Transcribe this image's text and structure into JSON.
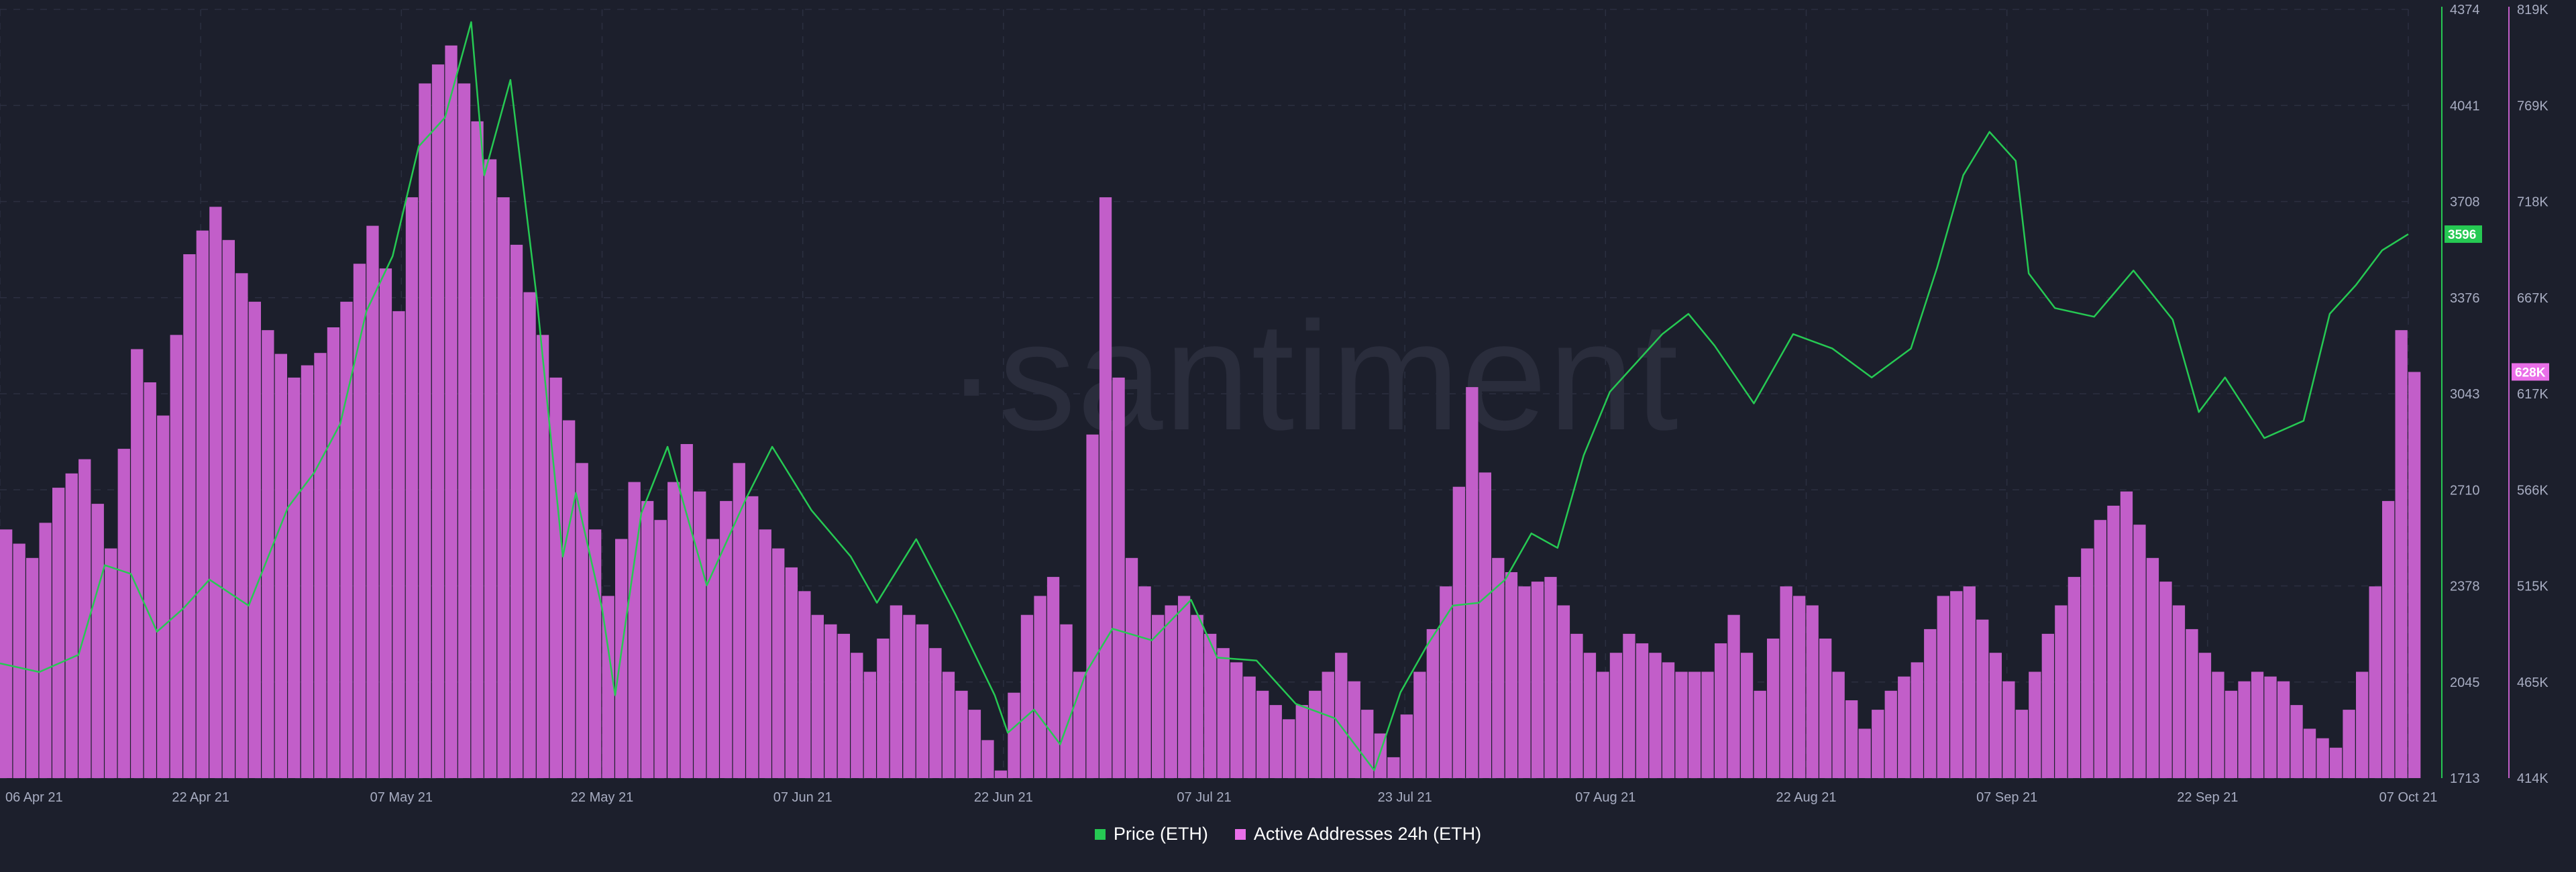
{
  "chart_data": {
    "type": "line",
    "watermark": "·santiment",
    "x_ticks": [
      "06 Apr 21",
      "22 Apr 21",
      "07 May 21",
      "22 May 21",
      "07 Jun 21",
      "22 Jun 21",
      "07 Jul 21",
      "23 Jul 21",
      "07 Aug 21",
      "22 Aug 21",
      "07 Sep 21",
      "22 Sep 21",
      "07 Oct 21"
    ],
    "x_start": "2021-04-06",
    "x_end": "2021-10-07",
    "series": [
      {
        "name": "Price (ETH)",
        "axis": "left",
        "color": "#26c953",
        "ylim": [
          1713,
          4374
        ],
        "y_ticks": [
          "4374",
          "4041",
          "3708",
          "3376",
          "3043",
          "2710",
          "2378",
          "2045",
          "1713"
        ],
        "current_value_label": "3596",
        "points": [
          [
            "2021-04-06",
            2110
          ],
          [
            "2021-04-09",
            2080
          ],
          [
            "2021-04-12",
            2140
          ],
          [
            "2021-04-14",
            2450
          ],
          [
            "2021-04-16",
            2420
          ],
          [
            "2021-04-18",
            2220
          ],
          [
            "2021-04-20",
            2300
          ],
          [
            "2021-04-22",
            2400
          ],
          [
            "2021-04-25",
            2310
          ],
          [
            "2021-04-28",
            2650
          ],
          [
            "2021-04-30",
            2770
          ],
          [
            "2021-05-02",
            2940
          ],
          [
            "2021-05-04",
            3330
          ],
          [
            "2021-05-06",
            3520
          ],
          [
            "2021-05-08",
            3900
          ],
          [
            "2021-05-10",
            4000
          ],
          [
            "2021-05-12",
            4330
          ],
          [
            "2021-05-13",
            3800
          ],
          [
            "2021-05-15",
            4130
          ],
          [
            "2021-05-17",
            3380
          ],
          [
            "2021-05-19",
            2480
          ],
          [
            "2021-05-20",
            2700
          ],
          [
            "2021-05-22",
            2300
          ],
          [
            "2021-05-23",
            2000
          ],
          [
            "2021-05-25",
            2630
          ],
          [
            "2021-05-27",
            2860
          ],
          [
            "2021-05-30",
            2380
          ],
          [
            "2021-06-02",
            2680
          ],
          [
            "2021-06-04",
            2860
          ],
          [
            "2021-06-07",
            2640
          ],
          [
            "2021-06-10",
            2480
          ],
          [
            "2021-06-12",
            2320
          ],
          [
            "2021-06-15",
            2540
          ],
          [
            "2021-06-18",
            2280
          ],
          [
            "2021-06-21",
            2000
          ],
          [
            "2021-06-22",
            1870
          ],
          [
            "2021-06-24",
            1950
          ],
          [
            "2021-06-26",
            1830
          ],
          [
            "2021-06-28",
            2080
          ],
          [
            "2021-06-30",
            2230
          ],
          [
            "2021-07-03",
            2190
          ],
          [
            "2021-07-06",
            2330
          ],
          [
            "2021-07-08",
            2130
          ],
          [
            "2021-07-11",
            2120
          ],
          [
            "2021-07-14",
            1970
          ],
          [
            "2021-07-17",
            1920
          ],
          [
            "2021-07-20",
            1740
          ],
          [
            "2021-07-22",
            2010
          ],
          [
            "2021-07-24",
            2170
          ],
          [
            "2021-07-26",
            2310
          ],
          [
            "2021-07-28",
            2320
          ],
          [
            "2021-07-30",
            2400
          ],
          [
            "2021-08-01",
            2560
          ],
          [
            "2021-08-03",
            2510
          ],
          [
            "2021-08-05",
            2830
          ],
          [
            "2021-08-07",
            3050
          ],
          [
            "2021-08-09",
            3150
          ],
          [
            "2021-08-11",
            3250
          ],
          [
            "2021-08-13",
            3320
          ],
          [
            "2021-08-15",
            3210
          ],
          [
            "2021-08-18",
            3010
          ],
          [
            "2021-08-21",
            3250
          ],
          [
            "2021-08-24",
            3200
          ],
          [
            "2021-08-27",
            3100
          ],
          [
            "2021-08-30",
            3200
          ],
          [
            "2021-09-01",
            3480
          ],
          [
            "2021-09-03",
            3800
          ],
          [
            "2021-09-05",
            3950
          ],
          [
            "2021-09-07",
            3850
          ],
          [
            "2021-09-08",
            3460
          ],
          [
            "2021-09-10",
            3340
          ],
          [
            "2021-09-13",
            3310
          ],
          [
            "2021-09-16",
            3470
          ],
          [
            "2021-09-19",
            3300
          ],
          [
            "2021-09-21",
            2980
          ],
          [
            "2021-09-23",
            3100
          ],
          [
            "2021-09-26",
            2890
          ],
          [
            "2021-09-29",
            2950
          ],
          [
            "2021-10-01",
            3320
          ],
          [
            "2021-10-03",
            3420
          ],
          [
            "2021-10-05",
            3540
          ],
          [
            "2021-10-07",
            3596
          ]
        ]
      },
      {
        "name": "Active Addresses 24h (ETH)",
        "axis": "right",
        "color": "#c25ec9",
        "ylim": [
          414000,
          819000
        ],
        "y_ticks": [
          "819K",
          "769K",
          "718K",
          "667K",
          "617K",
          "566K",
          "515K",
          "465K",
          "414K"
        ],
        "current_value_label": "628K",
        "points": [
          [
            "2021-04-06",
            545000
          ],
          [
            "2021-04-08",
            530000
          ],
          [
            "2021-04-10",
            567000
          ],
          [
            "2021-04-12",
            582000
          ],
          [
            "2021-04-14",
            535000
          ],
          [
            "2021-04-16",
            640000
          ],
          [
            "2021-04-18",
            605000
          ],
          [
            "2021-04-20",
            690000
          ],
          [
            "2021-04-22",
            715000
          ],
          [
            "2021-04-24",
            680000
          ],
          [
            "2021-04-26",
            650000
          ],
          [
            "2021-04-28",
            625000
          ],
          [
            "2021-04-30",
            638000
          ],
          [
            "2021-05-02",
            665000
          ],
          [
            "2021-05-04",
            705000
          ],
          [
            "2021-05-06",
            660000
          ],
          [
            "2021-05-08",
            780000
          ],
          [
            "2021-05-10",
            800000
          ],
          [
            "2021-05-12",
            760000
          ],
          [
            "2021-05-14",
            720000
          ],
          [
            "2021-05-16",
            670000
          ],
          [
            "2021-05-18",
            625000
          ],
          [
            "2021-05-20",
            580000
          ],
          [
            "2021-05-22",
            510000
          ],
          [
            "2021-05-24",
            570000
          ],
          [
            "2021-05-26",
            550000
          ],
          [
            "2021-05-28",
            590000
          ],
          [
            "2021-05-30",
            540000
          ],
          [
            "2021-06-01",
            580000
          ],
          [
            "2021-06-03",
            545000
          ],
          [
            "2021-06-05",
            525000
          ],
          [
            "2021-06-07",
            500000
          ],
          [
            "2021-06-09",
            490000
          ],
          [
            "2021-06-11",
            470000
          ],
          [
            "2021-06-13",
            505000
          ],
          [
            "2021-06-15",
            495000
          ],
          [
            "2021-06-17",
            470000
          ],
          [
            "2021-06-19",
            450000
          ],
          [
            "2021-06-21",
            418000
          ],
          [
            "2021-06-23",
            500000
          ],
          [
            "2021-06-25",
            520000
          ],
          [
            "2021-06-27",
            470000
          ],
          [
            "2021-06-29",
            720000
          ],
          [
            "2021-07-01",
            530000
          ],
          [
            "2021-07-03",
            500000
          ],
          [
            "2021-07-05",
            510000
          ],
          [
            "2021-07-07",
            490000
          ],
          [
            "2021-07-09",
            475000
          ],
          [
            "2021-07-11",
            460000
          ],
          [
            "2021-07-13",
            445000
          ],
          [
            "2021-07-15",
            460000
          ],
          [
            "2021-07-17",
            480000
          ],
          [
            "2021-07-19",
            450000
          ],
          [
            "2021-07-21",
            425000
          ],
          [
            "2021-07-23",
            470000
          ],
          [
            "2021-07-25",
            515000
          ],
          [
            "2021-07-27",
            620000
          ],
          [
            "2021-07-29",
            530000
          ],
          [
            "2021-07-31",
            515000
          ],
          [
            "2021-08-02",
            520000
          ],
          [
            "2021-08-04",
            490000
          ],
          [
            "2021-08-06",
            470000
          ],
          [
            "2021-08-08",
            490000
          ],
          [
            "2021-08-10",
            480000
          ],
          [
            "2021-08-12",
            470000
          ],
          [
            "2021-08-14",
            470000
          ],
          [
            "2021-08-16",
            500000
          ],
          [
            "2021-08-18",
            460000
          ],
          [
            "2021-08-20",
            515000
          ],
          [
            "2021-08-22",
            505000
          ],
          [
            "2021-08-24",
            470000
          ],
          [
            "2021-08-26",
            440000
          ],
          [
            "2021-08-28",
            460000
          ],
          [
            "2021-08-30",
            475000
          ],
          [
            "2021-09-01",
            510000
          ],
          [
            "2021-09-03",
            515000
          ],
          [
            "2021-09-05",
            480000
          ],
          [
            "2021-09-07",
            450000
          ],
          [
            "2021-09-09",
            490000
          ],
          [
            "2021-09-11",
            520000
          ],
          [
            "2021-09-13",
            550000
          ],
          [
            "2021-09-15",
            565000
          ],
          [
            "2021-09-17",
            530000
          ],
          [
            "2021-09-19",
            505000
          ],
          [
            "2021-09-21",
            480000
          ],
          [
            "2021-09-23",
            460000
          ],
          [
            "2021-09-25",
            470000
          ],
          [
            "2021-09-27",
            465000
          ],
          [
            "2021-09-29",
            440000
          ],
          [
            "2021-10-01",
            430000
          ],
          [
            "2021-10-03",
            470000
          ],
          [
            "2021-10-05",
            560000
          ],
          [
            "2021-10-06",
            650000
          ],
          [
            "2021-10-07",
            628000
          ]
        ]
      }
    ]
  },
  "legend": {
    "price_label": "Price (ETH)",
    "addresses_label": "Active Addresses 24h (ETH)"
  }
}
